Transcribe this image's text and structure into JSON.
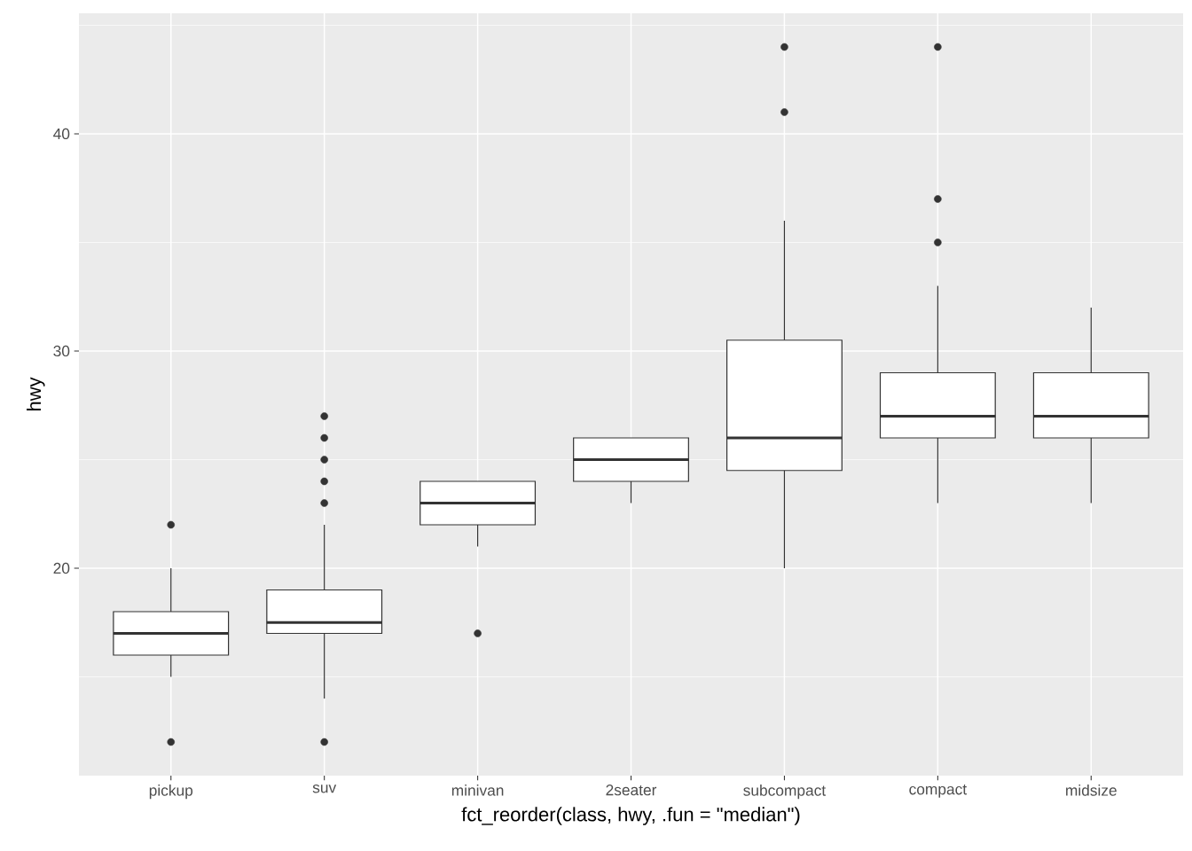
{
  "chart_data": {
    "type": "box",
    "xlabel": "fct_reorder(class, hwy, .fun = \"median\")",
    "ylabel": "hwy",
    "categories": [
      "pickup",
      "suv",
      "minivan",
      "2seater",
      "subcompact",
      "compact",
      "midsize"
    ],
    "boxes": [
      {
        "low": 15,
        "q1": 16,
        "median": 17,
        "q3": 18,
        "high": 20,
        "outliers": [
          12,
          22
        ]
      },
      {
        "low": 14,
        "q1": 17,
        "median": 17.5,
        "q3": 19,
        "high": 22,
        "outliers": [
          12,
          23,
          24,
          25,
          26,
          27
        ]
      },
      {
        "low": 21,
        "q1": 22,
        "median": 23,
        "q3": 24,
        "high": 24,
        "outliers": [
          17
        ]
      },
      {
        "low": 23,
        "q1": 24,
        "median": 25,
        "q3": 26,
        "high": 26
      },
      {
        "low": 20,
        "q1": 24.5,
        "median": 26,
        "q3": 30.5,
        "high": 36,
        "outliers": [
          41,
          44
        ]
      },
      {
        "low": 23,
        "q1": 26,
        "median": 27,
        "q3": 29,
        "high": 33,
        "outliers": [
          35,
          37,
          44
        ]
      },
      {
        "low": 23,
        "q1": 26,
        "median": 27,
        "q3": 29,
        "high": 32
      }
    ],
    "ylim": [
      10.45,
      45.55
    ],
    "yticks": [
      20,
      30,
      40
    ],
    "grid": true
  }
}
